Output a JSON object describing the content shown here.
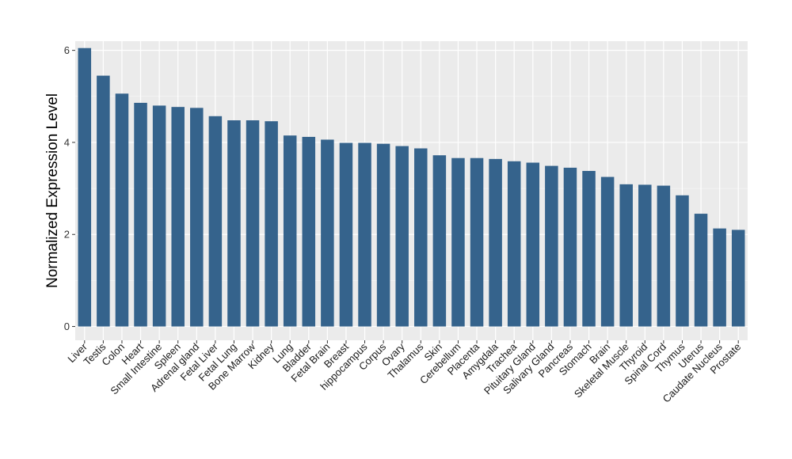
{
  "chart_data": {
    "type": "bar",
    "title": "",
    "xlabel": "",
    "ylabel": "Normalized Expression Level",
    "ylim": [
      0,
      6.2
    ],
    "yticks": [
      0,
      2,
      4,
      6
    ],
    "grid": true,
    "bar_color": "#35638c",
    "panel_color": "#ebebeb",
    "categories": [
      "Liver",
      "Testis",
      "Colon",
      "Heart",
      "Small Intestine",
      "Spleen",
      "Adrenal gland",
      "Fetal Liver",
      "Fetal Lung",
      "Bone Marrow",
      "Kidney",
      "Lung",
      "Bladder",
      "Fetal Brain",
      "Breast",
      "hippocampus",
      "Corpus",
      "Ovary",
      "Thalamus",
      "Skin",
      "Cerebellum",
      "Placenta",
      "Amygdala",
      "Trachea",
      "Pituitary Gland",
      "Salivary Gland",
      "Pancreas",
      "Stomach",
      "Brain",
      "Skeletal Muscle",
      "Thyroid",
      "Spinal Cord",
      "Thymus",
      "Uterus",
      "Caudate Nucleus",
      "Prostate"
    ],
    "values": [
      6.05,
      5.45,
      5.06,
      4.86,
      4.8,
      4.77,
      4.75,
      4.57,
      4.48,
      4.48,
      4.46,
      4.15,
      4.12,
      4.06,
      3.99,
      3.99,
      3.97,
      3.92,
      3.87,
      3.72,
      3.66,
      3.66,
      3.64,
      3.59,
      3.56,
      3.49,
      3.45,
      3.38,
      3.25,
      3.09,
      3.08,
      3.06,
      2.85,
      2.45,
      2.13,
      2.1
    ]
  }
}
